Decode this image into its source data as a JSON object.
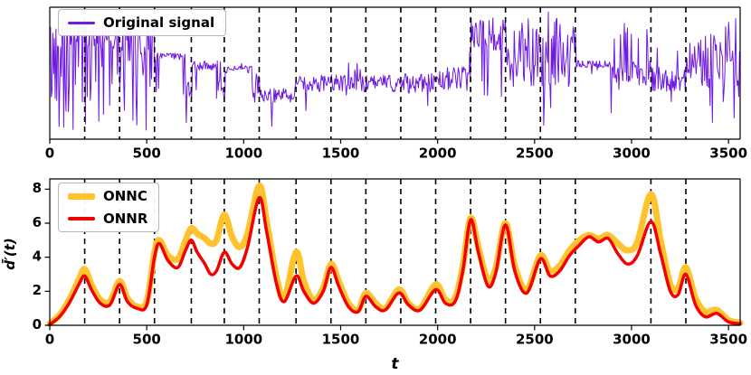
{
  "colors": {
    "signal": "#6f1ae1",
    "onnc": "#fec32d",
    "onnr": "#f40000",
    "dashed": "#000000",
    "axis": "#000000"
  },
  "chart_data": [
    {
      "type": "line",
      "title": "",
      "legend_label": "Original signal",
      "xlim": [
        0,
        3560
      ],
      "xticks": [
        0,
        500,
        1000,
        1500,
        2000,
        2500,
        3000,
        3500
      ],
      "grid": false,
      "legend_position": "upper-left",
      "change_points": [
        180,
        360,
        540,
        730,
        900,
        1080,
        1270,
        1450,
        1630,
        1810,
        1990,
        2170,
        2350,
        2530,
        2710,
        3100,
        3280
      ],
      "signal_segments": [
        {
          "x0": 0,
          "x1": 185,
          "base": 0.82,
          "noise": 0.12,
          "spike_p": 0.3,
          "spike_lo": 0.05,
          "spike_hi": 0.55
        },
        {
          "x0": 185,
          "x1": 365,
          "base": 0.8,
          "noise": 0.12,
          "spike_p": 0.25,
          "spike_lo": 0.1,
          "spike_hi": 0.55
        },
        {
          "x0": 365,
          "x1": 545,
          "base": 0.68,
          "noise": 0.28,
          "spike_p": 0.15,
          "spike_lo": 0.05,
          "spike_hi": 0.98
        },
        {
          "x0": 545,
          "x1": 700,
          "base": 0.63,
          "noise": 0.03,
          "spike_p": 0.06,
          "spike_lo": 0.3,
          "spike_hi": 0.5
        },
        {
          "x0": 700,
          "x1": 735,
          "base": 0.35,
          "noise": 0.1,
          "spike_p": 0.2,
          "spike_lo": 0.1,
          "spike_hi": 0.5
        },
        {
          "x0": 735,
          "x1": 860,
          "base": 0.56,
          "noise": 0.04,
          "spike_p": 0.05,
          "spike_lo": 0.3,
          "spike_hi": 0.5
        },
        {
          "x0": 860,
          "x1": 905,
          "base": 0.4,
          "noise": 0.12,
          "spike_p": 0.3,
          "spike_lo": 0.15,
          "spike_hi": 0.6
        },
        {
          "x0": 905,
          "x1": 1045,
          "base": 0.53,
          "noise": 0.03,
          "spike_p": 0.04,
          "spike_lo": 0.35,
          "spike_hi": 0.6
        },
        {
          "x0": 1045,
          "x1": 1085,
          "base": 0.42,
          "noise": 0.08,
          "spike_p": 0.2,
          "spike_lo": 0.2,
          "spike_hi": 0.5
        },
        {
          "x0": 1085,
          "x1": 1265,
          "base": 0.33,
          "noise": 0.06,
          "spike_p": 0.08,
          "spike_lo": 0.04,
          "spike_hi": 0.5
        },
        {
          "x0": 1265,
          "x1": 1805,
          "base": 0.42,
          "noise": 0.07,
          "spike_p": 0.04,
          "spike_lo": 0.15,
          "spike_hi": 0.6
        },
        {
          "x0": 1805,
          "x1": 1995,
          "base": 0.42,
          "noise": 0.08,
          "spike_p": 0.08,
          "spike_lo": 0.1,
          "spike_hi": 0.6
        },
        {
          "x0": 1995,
          "x1": 2165,
          "base": 0.46,
          "noise": 0.09,
          "spike_p": 0.1,
          "spike_lo": 0.05,
          "spike_hi": 0.9
        },
        {
          "x0": 2165,
          "x1": 2355,
          "base": 0.8,
          "noise": 0.14,
          "spike_p": 0.2,
          "spike_lo": 0.3,
          "spike_hi": 0.99
        },
        {
          "x0": 2355,
          "x1": 2715,
          "base": 0.65,
          "noise": 0.28,
          "spike_p": 0.1,
          "spike_lo": 0.05,
          "spike_hi": 0.99
        },
        {
          "x0": 2715,
          "x1": 2895,
          "base": 0.57,
          "noise": 0.03,
          "spike_p": 0.08,
          "spike_lo": 0.3,
          "spike_hi": 0.95
        },
        {
          "x0": 2895,
          "x1": 3105,
          "base": 0.5,
          "noise": 0.1,
          "spike_p": 0.12,
          "spike_lo": 0.12,
          "spike_hi": 0.9
        },
        {
          "x0": 3105,
          "x1": 3285,
          "base": 0.45,
          "noise": 0.1,
          "spike_p": 0.15,
          "spike_lo": 0.2,
          "spike_hi": 0.8
        },
        {
          "x0": 3285,
          "x1": 3560,
          "base": 0.6,
          "noise": 0.22,
          "spike_p": 0.15,
          "spike_lo": 0.1,
          "spike_hi": 0.95
        }
      ]
    },
    {
      "type": "line",
      "xlabel": "t",
      "ylabel": "d̄′(t)",
      "xlim": [
        0,
        3560
      ],
      "ylim": [
        0,
        8.6
      ],
      "xticks": [
        0,
        500,
        1000,
        1500,
        2000,
        2500,
        3000,
        3500
      ],
      "yticks": [
        0,
        2,
        4,
        6,
        8
      ],
      "grid": false,
      "legend_position": "upper-left",
      "change_points": [
        180,
        360,
        540,
        730,
        900,
        1080,
        1270,
        1450,
        1630,
        1810,
        1990,
        2170,
        2350,
        2530,
        2710,
        3100,
        3280
      ],
      "series": [
        {
          "name": "ONNC",
          "points": [
            [
              0,
              0.1
            ],
            [
              50,
              0.6
            ],
            [
              100,
              1.5
            ],
            [
              150,
              2.7
            ],
            [
              180,
              3.3
            ],
            [
              215,
              2.4
            ],
            [
              260,
              1.5
            ],
            [
              310,
              1.4
            ],
            [
              360,
              2.6
            ],
            [
              400,
              1.6
            ],
            [
              450,
              1.1
            ],
            [
              500,
              1.4
            ],
            [
              540,
              4.3
            ],
            [
              565,
              5.0
            ],
            [
              610,
              4.1
            ],
            [
              660,
              3.9
            ],
            [
              700,
              5.0
            ],
            [
              730,
              5.7
            ],
            [
              760,
              5.4
            ],
            [
              800,
              5.1
            ],
            [
              830,
              4.8
            ],
            [
              860,
              5.0
            ],
            [
              900,
              6.5
            ],
            [
              940,
              5.2
            ],
            [
              980,
              4.6
            ],
            [
              1020,
              5.4
            ],
            [
              1080,
              8.2
            ],
            [
              1120,
              6.0
            ],
            [
              1170,
              2.8
            ],
            [
              1210,
              1.6
            ],
            [
              1270,
              4.3
            ],
            [
              1310,
              2.6
            ],
            [
              1360,
              1.5
            ],
            [
              1410,
              2.2
            ],
            [
              1450,
              3.6
            ],
            [
              1490,
              2.6
            ],
            [
              1540,
              1.3
            ],
            [
              1590,
              0.9
            ],
            [
              1630,
              1.9
            ],
            [
              1680,
              1.3
            ],
            [
              1730,
              1.0
            ],
            [
              1800,
              2.1
            ],
            [
              1850,
              1.3
            ],
            [
              1910,
              1.0
            ],
            [
              1990,
              2.4
            ],
            [
              2040,
              1.5
            ],
            [
              2090,
              1.6
            ],
            [
              2130,
              3.5
            ],
            [
              2170,
              6.3
            ],
            [
              2210,
              4.6
            ],
            [
              2260,
              2.6
            ],
            [
              2300,
              3.4
            ],
            [
              2350,
              6.0
            ],
            [
              2400,
              3.4
            ],
            [
              2460,
              2.1
            ],
            [
              2530,
              4.1
            ],
            [
              2580,
              3.2
            ],
            [
              2630,
              3.5
            ],
            [
              2680,
              4.4
            ],
            [
              2730,
              5.0
            ],
            [
              2780,
              5.3
            ],
            [
              2830,
              5.1
            ],
            [
              2880,
              5.3
            ],
            [
              2930,
              4.8
            ],
            [
              2980,
              4.4
            ],
            [
              3030,
              4.9
            ],
            [
              3100,
              7.7
            ],
            [
              3150,
              5.0
            ],
            [
              3200,
              2.4
            ],
            [
              3240,
              2.2
            ],
            [
              3280,
              3.4
            ],
            [
              3330,
              1.6
            ],
            [
              3380,
              0.8
            ],
            [
              3440,
              0.9
            ],
            [
              3500,
              0.3
            ],
            [
              3560,
              0.15
            ]
          ]
        },
        {
          "name": "ONNR",
          "points": [
            [
              0,
              0.05
            ],
            [
              50,
              0.5
            ],
            [
              100,
              1.3
            ],
            [
              150,
              2.4
            ],
            [
              180,
              2.9
            ],
            [
              215,
              2.1
            ],
            [
              260,
              1.3
            ],
            [
              310,
              1.2
            ],
            [
              360,
              2.4
            ],
            [
              400,
              1.4
            ],
            [
              450,
              1.0
            ],
            [
              500,
              1.2
            ],
            [
              540,
              4.0
            ],
            [
              565,
              4.8
            ],
            [
              610,
              3.8
            ],
            [
              660,
              3.4
            ],
            [
              700,
              4.4
            ],
            [
              730,
              5.0
            ],
            [
              760,
              4.3
            ],
            [
              800,
              3.6
            ],
            [
              830,
              3.0
            ],
            [
              860,
              3.2
            ],
            [
              900,
              4.3
            ],
            [
              940,
              3.6
            ],
            [
              980,
              3.4
            ],
            [
              1020,
              4.6
            ],
            [
              1080,
              7.5
            ],
            [
              1120,
              5.4
            ],
            [
              1170,
              2.4
            ],
            [
              1210,
              1.4
            ],
            [
              1270,
              2.9
            ],
            [
              1310,
              2.0
            ],
            [
              1360,
              1.3
            ],
            [
              1410,
              2.0
            ],
            [
              1450,
              3.4
            ],
            [
              1490,
              2.3
            ],
            [
              1540,
              1.1
            ],
            [
              1590,
              0.8
            ],
            [
              1630,
              1.7
            ],
            [
              1680,
              1.1
            ],
            [
              1730,
              0.9
            ],
            [
              1800,
              1.9
            ],
            [
              1850,
              1.2
            ],
            [
              1910,
              0.9
            ],
            [
              1990,
              2.1
            ],
            [
              2040,
              1.3
            ],
            [
              2090,
              1.4
            ],
            [
              2130,
              3.2
            ],
            [
              2170,
              6.2
            ],
            [
              2210,
              4.3
            ],
            [
              2260,
              2.3
            ],
            [
              2300,
              3.1
            ],
            [
              2350,
              5.9
            ],
            [
              2400,
              3.1
            ],
            [
              2460,
              1.9
            ],
            [
              2530,
              3.9
            ],
            [
              2580,
              2.9
            ],
            [
              2630,
              3.2
            ],
            [
              2680,
              4.1
            ],
            [
              2730,
              4.7
            ],
            [
              2780,
              5.2
            ],
            [
              2830,
              4.9
            ],
            [
              2880,
              5.1
            ],
            [
              2930,
              4.2
            ],
            [
              2980,
              3.6
            ],
            [
              3030,
              4.1
            ],
            [
              3100,
              6.1
            ],
            [
              3150,
              4.2
            ],
            [
              3200,
              2.0
            ],
            [
              3240,
              1.8
            ],
            [
              3280,
              3.0
            ],
            [
              3330,
              1.2
            ],
            [
              3380,
              0.5
            ],
            [
              3440,
              0.7
            ],
            [
              3500,
              0.2
            ],
            [
              3560,
              0.1
            ]
          ]
        }
      ]
    }
  ]
}
